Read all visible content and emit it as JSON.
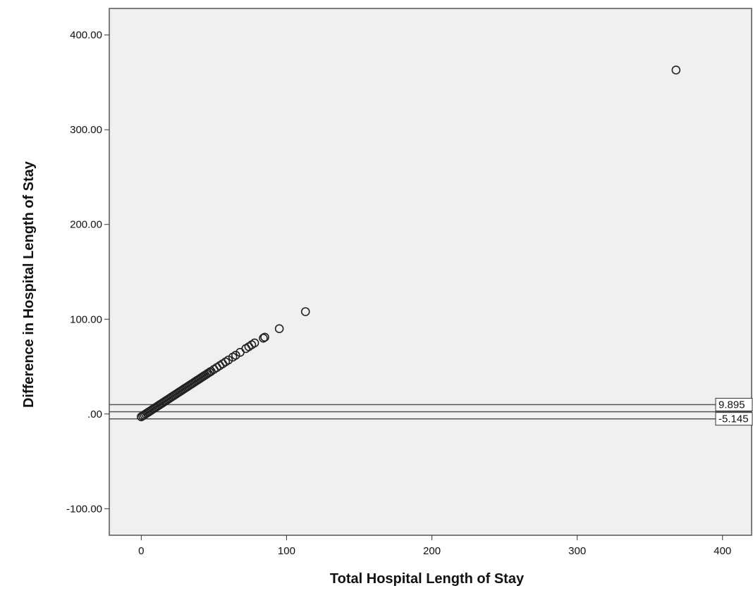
{
  "chart_data": {
    "type": "scatter",
    "title": "",
    "xlabel": "Total Hospital Length of Stay",
    "ylabel": "Difference in Hospital Length of Stay",
    "xlim": [
      -22,
      420
    ],
    "ylim": [
      -128,
      428
    ],
    "x_ticks": [
      0,
      100,
      200,
      300,
      400
    ],
    "x_tick_labels": [
      "0",
      "100",
      "200",
      "300",
      "400"
    ],
    "y_ticks": [
      -100,
      0,
      100,
      200,
      300,
      400
    ],
    "y_tick_labels": [
      "-100.00",
      ".00",
      "100.00",
      "200.00",
      "300.00",
      "400.00"
    ],
    "grid": false,
    "reference_lines": [
      {
        "y": 9.895,
        "label": "9.895"
      },
      {
        "y": 2.375,
        "label": ""
      },
      {
        "y": -5.145,
        "label": "-5.145"
      }
    ],
    "series": [
      {
        "marker": "open-circle",
        "x": [
          0,
          1,
          2,
          3,
          4,
          5,
          6,
          7,
          8,
          9,
          10,
          11,
          12,
          13,
          14,
          15,
          16,
          17,
          18,
          19,
          20,
          21,
          22,
          23,
          24,
          25,
          26,
          27,
          28,
          29,
          30,
          31,
          32,
          33,
          34,
          35,
          36,
          37,
          38,
          39,
          40,
          41,
          42,
          43,
          44,
          45,
          46,
          47,
          48,
          50,
          52,
          54,
          56,
          58,
          60,
          63,
          65,
          68,
          72,
          74,
          76,
          78,
          84,
          85,
          95,
          113,
          368
        ],
        "y": [
          -3,
          -2,
          -1,
          0,
          1,
          2,
          3,
          4,
          5,
          6,
          7,
          8,
          9,
          10,
          11,
          12,
          13,
          14,
          15,
          16,
          17,
          18,
          19,
          20,
          21,
          22,
          23,
          24,
          25,
          26,
          27,
          28,
          29,
          30,
          31,
          32,
          33,
          34,
          35,
          36,
          37,
          38,
          39,
          40,
          41,
          42,
          43,
          44,
          45,
          47,
          49,
          51,
          53,
          55,
          57,
          60,
          62,
          65,
          69,
          71,
          73,
          75,
          80,
          81,
          90,
          108,
          363
        ]
      }
    ]
  }
}
